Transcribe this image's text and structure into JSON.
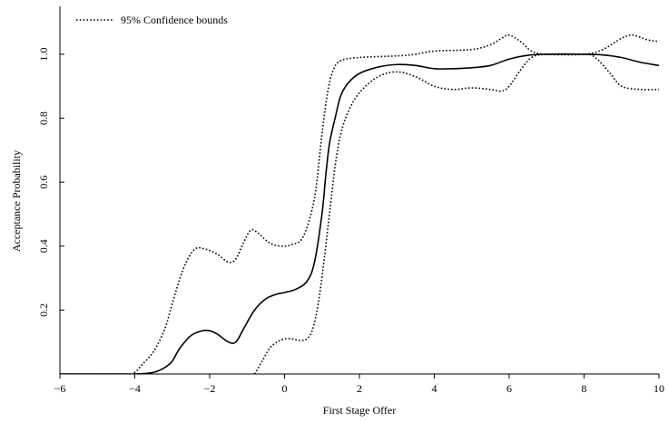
{
  "chart_data": {
    "type": "line",
    "xlabel": "First Stage Offer",
    "ylabel": "Acceptance Probability",
    "xlim": [
      -6,
      10
    ],
    "ylim": [
      0,
      1.15
    ],
    "x_ticks": [
      -6,
      -4,
      -2,
      0,
      2,
      4,
      6,
      8,
      10
    ],
    "x_tick_labels": [
      "−6",
      "−4",
      "−2",
      "0",
      "2",
      "4",
      "6",
      "8",
      "10"
    ],
    "y_ticks": [
      0.2,
      0.4,
      0.6,
      0.8,
      1.0
    ],
    "y_tick_labels": [
      "0.2",
      "0.4",
      "0.6",
      "0.8",
      "1.0"
    ],
    "grid": false,
    "legend": {
      "position": "top-left",
      "entries": [
        "95% Confidence bounds"
      ]
    },
    "series": [
      {
        "style": "solid",
        "points": [
          [
            -6,
            0
          ],
          [
            -4.5,
            0
          ],
          [
            -4,
            0
          ],
          [
            -3.5,
            0.005
          ],
          [
            -3.2,
            0.02
          ],
          [
            -3,
            0.04
          ],
          [
            -2.8,
            0.08
          ],
          [
            -2.5,
            0.12
          ],
          [
            -2.2,
            0.135
          ],
          [
            -2,
            0.135
          ],
          [
            -1.8,
            0.125
          ],
          [
            -1.5,
            0.1
          ],
          [
            -1.3,
            0.1
          ],
          [
            -1.1,
            0.14
          ],
          [
            -0.8,
            0.2
          ],
          [
            -0.5,
            0.235
          ],
          [
            -0.2,
            0.25
          ],
          [
            0,
            0.255
          ],
          [
            0.3,
            0.265
          ],
          [
            0.6,
            0.29
          ],
          [
            0.8,
            0.35
          ],
          [
            1.0,
            0.5
          ],
          [
            1.1,
            0.62
          ],
          [
            1.2,
            0.72
          ],
          [
            1.35,
            0.8
          ],
          [
            1.5,
            0.87
          ],
          [
            1.7,
            0.91
          ],
          [
            2,
            0.94
          ],
          [
            2.5,
            0.96
          ],
          [
            3,
            0.968
          ],
          [
            3.5,
            0.965
          ],
          [
            4,
            0.955
          ],
          [
            4.5,
            0.955
          ],
          [
            5,
            0.958
          ],
          [
            5.5,
            0.965
          ],
          [
            6,
            0.985
          ],
          [
            6.5,
            0.997
          ],
          [
            7,
            1.0
          ],
          [
            8,
            1.0
          ],
          [
            8.5,
            0.998
          ],
          [
            9,
            0.99
          ],
          [
            9.5,
            0.975
          ],
          [
            10,
            0.965
          ]
        ]
      },
      {
        "name": "95% Confidence bounds",
        "style": "dotted",
        "points": [
          [
            -6,
            0
          ],
          [
            -4.2,
            0
          ],
          [
            -4,
            0.005
          ],
          [
            -3.8,
            0.03
          ],
          [
            -3.5,
            0.07
          ],
          [
            -3.2,
            0.14
          ],
          [
            -3,
            0.22
          ],
          [
            -2.7,
            0.33
          ],
          [
            -2.4,
            0.39
          ],
          [
            -2.1,
            0.39
          ],
          [
            -1.8,
            0.375
          ],
          [
            -1.5,
            0.35
          ],
          [
            -1.3,
            0.36
          ],
          [
            -1.1,
            0.41
          ],
          [
            -0.9,
            0.45
          ],
          [
            -0.7,
            0.44
          ],
          [
            -0.4,
            0.41
          ],
          [
            -0.1,
            0.4
          ],
          [
            0.2,
            0.405
          ],
          [
            0.5,
            0.43
          ],
          [
            0.8,
            0.55
          ],
          [
            1.0,
            0.75
          ],
          [
            1.15,
            0.88
          ],
          [
            1.3,
            0.95
          ],
          [
            1.5,
            0.98
          ],
          [
            2,
            0.99
          ],
          [
            3,
            0.995
          ],
          [
            3.5,
            1.0
          ],
          [
            4,
            1.01
          ],
          [
            5,
            1.015
          ],
          [
            5.5,
            1.03
          ],
          [
            5.8,
            1.05
          ],
          [
            6,
            1.06
          ],
          [
            6.3,
            1.04
          ],
          [
            6.6,
            1.01
          ],
          [
            7,
            1.0
          ],
          [
            8,
            1.0
          ],
          [
            8.5,
            1.015
          ],
          [
            9,
            1.05
          ],
          [
            9.3,
            1.06
          ],
          [
            9.7,
            1.045
          ],
          [
            10,
            1.04
          ]
        ]
      },
      {
        "name": "95% Confidence bounds",
        "style": "dotted",
        "points": [
          [
            -0.8,
            0
          ],
          [
            -0.6,
            0.04
          ],
          [
            -0.4,
            0.08
          ],
          [
            -0.2,
            0.1
          ],
          [
            0,
            0.11
          ],
          [
            0.2,
            0.11
          ],
          [
            0.4,
            0.105
          ],
          [
            0.6,
            0.11
          ],
          [
            0.75,
            0.14
          ],
          [
            0.9,
            0.22
          ],
          [
            1.05,
            0.35
          ],
          [
            1.2,
            0.5
          ],
          [
            1.35,
            0.65
          ],
          [
            1.5,
            0.75
          ],
          [
            1.7,
            0.82
          ],
          [
            2,
            0.88
          ],
          [
            2.5,
            0.93
          ],
          [
            3,
            0.945
          ],
          [
            3.5,
            0.93
          ],
          [
            4,
            0.9
          ],
          [
            4.5,
            0.89
          ],
          [
            5,
            0.895
          ],
          [
            5.5,
            0.89
          ],
          [
            5.8,
            0.885
          ],
          [
            6,
            0.9
          ],
          [
            6.3,
            0.95
          ],
          [
            6.6,
            0.99
          ],
          [
            7,
            1.0
          ],
          [
            8,
            1.0
          ],
          [
            8.3,
            0.99
          ],
          [
            8.7,
            0.94
          ],
          [
            9,
            0.9
          ],
          [
            9.5,
            0.89
          ],
          [
            10,
            0.89
          ]
        ]
      }
    ]
  }
}
